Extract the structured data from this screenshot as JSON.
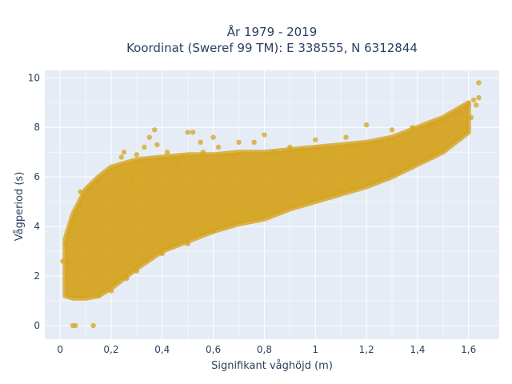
{
  "chart_data": {
    "type": "scatter",
    "title_line1": "År 1979 - 2019",
    "title_line2": "Koordinat (Sweref 99 TM): E 338555, N 6312844",
    "xlabel": "Signifikant våghöjd (m)",
    "ylabel": "Vågperiod (s)",
    "xlim": [
      -0.06,
      1.72
    ],
    "ylim": [
      -0.55,
      10.3
    ],
    "xticks": [
      0,
      0.2,
      0.4,
      0.6,
      0.8,
      1,
      1.2,
      1.4,
      1.6
    ],
    "xtick_labels": [
      "0",
      "0,2",
      "0,4",
      "0,6",
      "0,8",
      "1",
      "1,2",
      "1,4",
      "1,6"
    ],
    "yticks": [
      0,
      2,
      4,
      6,
      8,
      10
    ],
    "ytick_labels": [
      "0",
      "2",
      "4",
      "6",
      "8",
      "10"
    ],
    "grid": true,
    "plot_background": "#e5ecf6",
    "marker_color": "#d4a420",
    "band": {
      "x": [
        0.02,
        0.05,
        0.1,
        0.15,
        0.2,
        0.3,
        0.4,
        0.5,
        0.6,
        0.7,
        0.8,
        0.9,
        1.0,
        1.1,
        1.2,
        1.3,
        1.4,
        1.5,
        1.6
      ],
      "y_low": [
        1.2,
        1.1,
        1.1,
        1.2,
        1.5,
        2.3,
        3.0,
        3.4,
        3.8,
        4.1,
        4.3,
        4.7,
        5.0,
        5.3,
        5.6,
        6.0,
        6.5,
        7.0,
        7.8
      ],
      "y_high": [
        3.5,
        4.5,
        5.5,
        6.0,
        6.4,
        6.7,
        6.8,
        6.9,
        6.9,
        7.0,
        7.0,
        7.1,
        7.2,
        7.3,
        7.4,
        7.6,
        8.0,
        8.4,
        9.0
      ]
    },
    "points": [
      {
        "x": 0.05,
        "y": 0.0
      },
      {
        "x": 0.06,
        "y": 0.0
      },
      {
        "x": 0.13,
        "y": 0.0
      },
      {
        "x": 0.01,
        "y": 2.6
      },
      {
        "x": 0.03,
        "y": 2.5
      },
      {
        "x": 0.02,
        "y": 3.3
      },
      {
        "x": 0.04,
        "y": 3.9
      },
      {
        "x": 0.08,
        "y": 5.4
      },
      {
        "x": 0.08,
        "y": 4.9
      },
      {
        "x": 0.12,
        "y": 5.5
      },
      {
        "x": 0.15,
        "y": 5.8
      },
      {
        "x": 0.25,
        "y": 7.0
      },
      {
        "x": 0.28,
        "y": 6.0
      },
      {
        "x": 0.33,
        "y": 7.2
      },
      {
        "x": 0.35,
        "y": 7.6
      },
      {
        "x": 0.37,
        "y": 7.9
      },
      {
        "x": 0.38,
        "y": 7.3
      },
      {
        "x": 0.42,
        "y": 7.0
      },
      {
        "x": 0.46,
        "y": 6.5
      },
      {
        "x": 0.5,
        "y": 7.8
      },
      {
        "x": 0.52,
        "y": 7.8
      },
      {
        "x": 0.55,
        "y": 7.4
      },
      {
        "x": 0.6,
        "y": 7.6
      },
      {
        "x": 0.62,
        "y": 7.2
      },
      {
        "x": 0.7,
        "y": 7.4
      },
      {
        "x": 0.76,
        "y": 7.4
      },
      {
        "x": 0.8,
        "y": 7.7
      },
      {
        "x": 0.9,
        "y": 7.2
      },
      {
        "x": 1.0,
        "y": 7.5
      },
      {
        "x": 1.12,
        "y": 7.6
      },
      {
        "x": 1.2,
        "y": 8.1
      },
      {
        "x": 1.3,
        "y": 7.9
      },
      {
        "x": 1.38,
        "y": 8.0
      },
      {
        "x": 1.45,
        "y": 8.1
      },
      {
        "x": 1.5,
        "y": 8.3
      },
      {
        "x": 1.57,
        "y": 8.6
      },
      {
        "x": 1.6,
        "y": 8.9
      },
      {
        "x": 1.62,
        "y": 9.1
      },
      {
        "x": 1.64,
        "y": 9.2
      },
      {
        "x": 1.64,
        "y": 9.8
      },
      {
        "x": 1.63,
        "y": 8.9
      },
      {
        "x": 1.61,
        "y": 8.4
      },
      {
        "x": 1.46,
        "y": 6.9
      },
      {
        "x": 1.3,
        "y": 6.2
      },
      {
        "x": 1.1,
        "y": 5.5
      },
      {
        "x": 0.9,
        "y": 4.8
      },
      {
        "x": 0.7,
        "y": 4.2
      },
      {
        "x": 0.5,
        "y": 3.3
      },
      {
        "x": 0.3,
        "y": 2.2
      },
      {
        "x": 0.2,
        "y": 1.4
      },
      {
        "x": 0.15,
        "y": 1.2
      },
      {
        "x": 0.26,
        "y": 1.9
      },
      {
        "x": 0.4,
        "y": 2.9
      },
      {
        "x": 0.6,
        "y": 3.8
      },
      {
        "x": 0.24,
        "y": 6.8
      },
      {
        "x": 0.3,
        "y": 6.9
      },
      {
        "x": 0.56,
        "y": 7.0
      },
      {
        "x": 0.68,
        "y": 6.8
      },
      {
        "x": 0.84,
        "y": 7.0
      },
      {
        "x": 0.95,
        "y": 7.1
      }
    ]
  }
}
